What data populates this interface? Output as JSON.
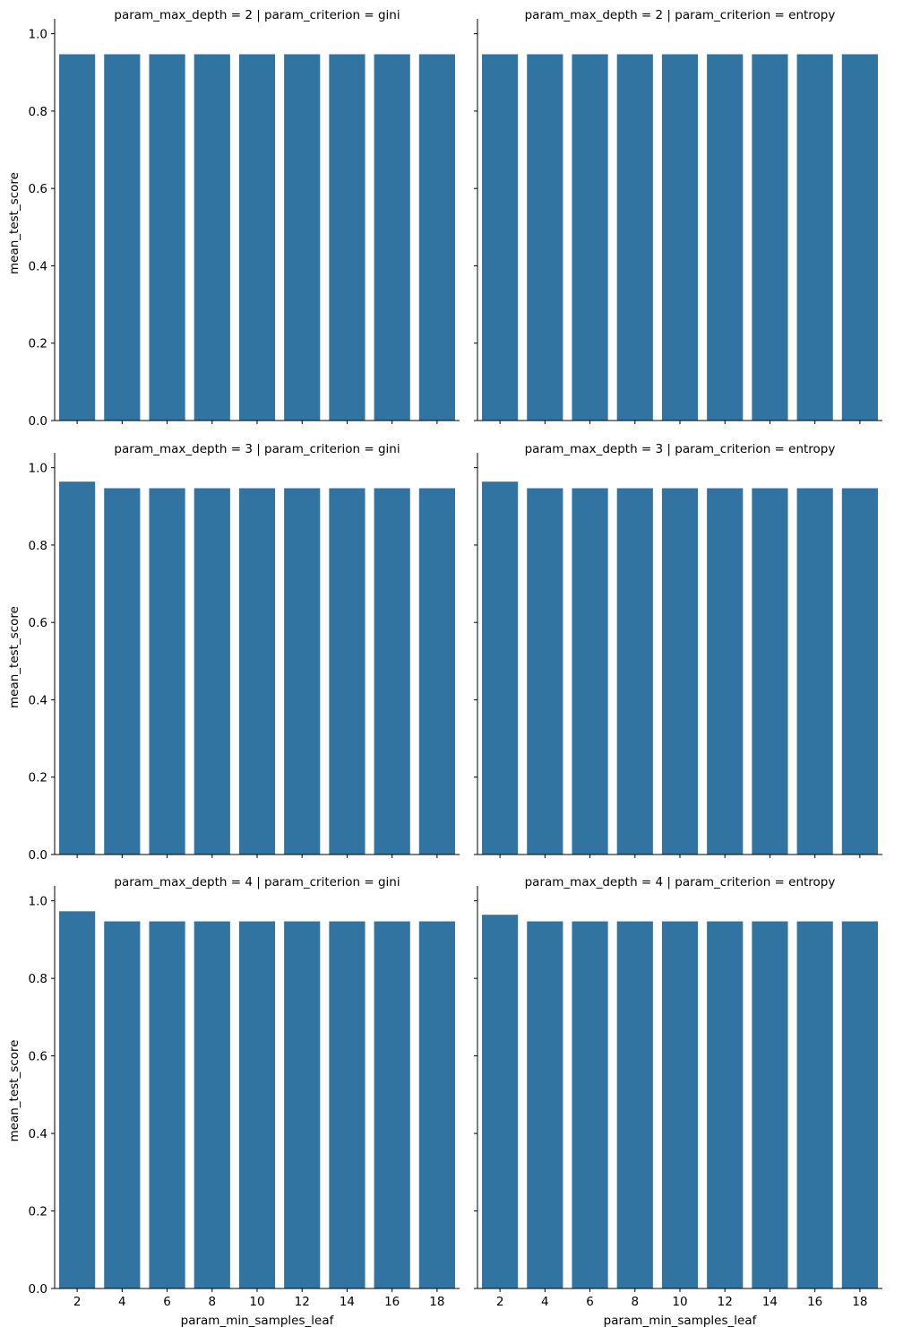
{
  "chart_data": {
    "type": "bar",
    "layout": "facet-grid",
    "facet_rows": 3,
    "facet_cols": 2,
    "row_var": "param_max_depth",
    "col_var": "param_criterion",
    "xlabel": "param_min_samples_leaf",
    "ylabel": "mean_test_score",
    "ylim": [
      0,
      1.02
    ],
    "yticks": [
      0.0,
      0.2,
      0.4,
      0.6,
      0.8,
      1.0
    ],
    "ytick_labels": [
      "0.0",
      "0.2",
      "0.4",
      "0.6",
      "0.8",
      "1.0"
    ],
    "categories": [
      "2",
      "4",
      "6",
      "8",
      "10",
      "12",
      "14",
      "16",
      "18"
    ],
    "bar_color": "#3274a1",
    "panels": [
      {
        "title": "param_max_depth = 2 | param_criterion = gini",
        "values": [
          0.947,
          0.947,
          0.947,
          0.947,
          0.947,
          0.947,
          0.947,
          0.947,
          0.947
        ]
      },
      {
        "title": "param_max_depth = 2 | param_criterion = entropy",
        "values": [
          0.947,
          0.947,
          0.947,
          0.947,
          0.947,
          0.947,
          0.947,
          0.947,
          0.947
        ]
      },
      {
        "title": "param_max_depth = 3 | param_criterion = gini",
        "values": [
          0.964,
          0.947,
          0.947,
          0.947,
          0.947,
          0.947,
          0.947,
          0.947,
          0.947
        ]
      },
      {
        "title": "param_max_depth = 3 | param_criterion = entropy",
        "values": [
          0.964,
          0.947,
          0.947,
          0.947,
          0.947,
          0.947,
          0.947,
          0.947,
          0.947
        ]
      },
      {
        "title": "param_max_depth = 4 | param_criterion = gini",
        "values": [
          0.973,
          0.947,
          0.947,
          0.947,
          0.947,
          0.947,
          0.947,
          0.947,
          0.947
        ]
      },
      {
        "title": "param_max_depth = 4 | param_criterion = entropy",
        "values": [
          0.964,
          0.947,
          0.947,
          0.947,
          0.947,
          0.947,
          0.947,
          0.947,
          0.947
        ]
      }
    ]
  }
}
